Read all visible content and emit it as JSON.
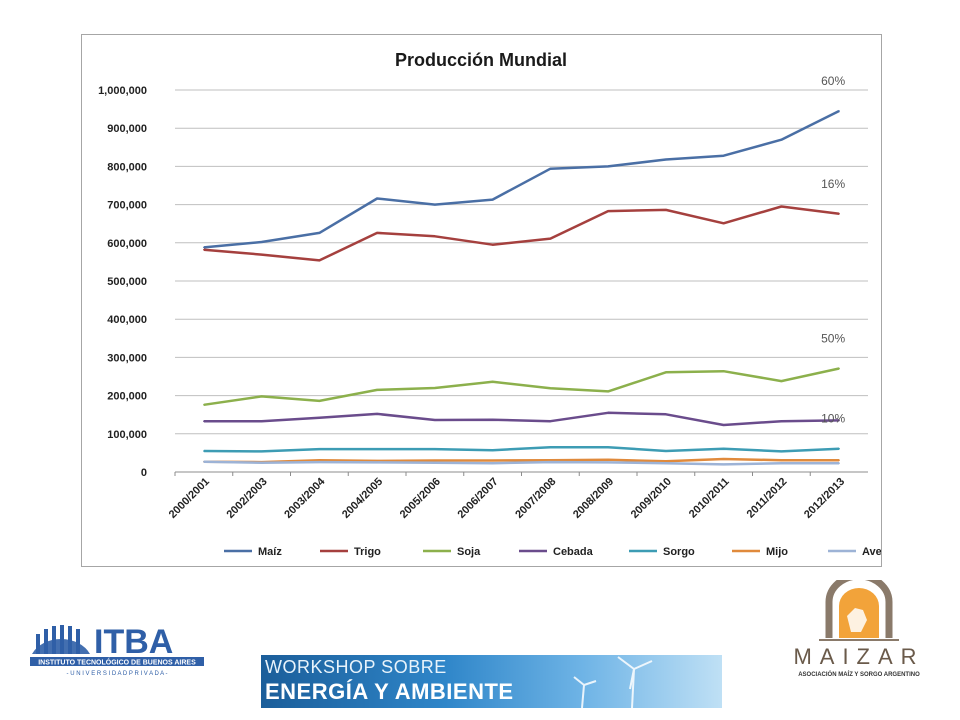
{
  "chart_data": {
    "type": "line",
    "title": "Producción Mundial",
    "categories": [
      "2000/2001",
      "2002/2003",
      "2003/2004",
      "2004/2005",
      "2005/2006",
      "2006/2007",
      "2007/2008",
      "2008/2009",
      "2009/2010",
      "2010/2011",
      "2011/2012",
      "2012/2013"
    ],
    "y_ticks": [
      "0",
      "100,000",
      "200,000",
      "300,000",
      "400,000",
      "500,000",
      "600,000",
      "700,000",
      "800,000",
      "900,000",
      "1,000,000"
    ],
    "ylim": [
      0,
      1000000
    ],
    "grid": true,
    "legend_position": "bottom",
    "series": [
      {
        "name": "Maíz",
        "color": "#4a6fa5",
        "values": [
          588000,
          602000,
          626000,
          716000,
          700000,
          713000,
          794000,
          800000,
          818000,
          828000,
          870000,
          945000
        ]
      },
      {
        "name": "Trigo",
        "color": "#a5403e",
        "values": [
          582000,
          569000,
          554000,
          626000,
          617000,
          595000,
          611000,
          683000,
          686000,
          651000,
          695000,
          676000
        ]
      },
      {
        "name": "Soja",
        "color": "#8cb04c",
        "values": [
          176000,
          198000,
          186000,
          215000,
          220000,
          236000,
          219000,
          211000,
          261000,
          264000,
          238000,
          271000
        ]
      },
      {
        "name": "Cebada",
        "color": "#6a4c8c",
        "values": [
          133000,
          133000,
          142000,
          152000,
          136000,
          137000,
          133000,
          155000,
          151000,
          123000,
          133000,
          135000
        ]
      },
      {
        "name": "Sorgo",
        "color": "#3d9cb4",
        "values": [
          55000,
          54000,
          60000,
          60000,
          60000,
          57000,
          65000,
          65000,
          55000,
          61000,
          54000,
          61000
        ]
      },
      {
        "name": "Mijo",
        "color": "#e08a3c",
        "values": [
          27000,
          26000,
          31000,
          29000,
          30000,
          30000,
          31000,
          32000,
          28000,
          34000,
          31000,
          31000
        ]
      },
      {
        "name": "Avena",
        "color": "#9db3d6",
        "values": [
          27000,
          24000,
          26000,
          25000,
          24000,
          23000,
          26000,
          25000,
          23000,
          20000,
          23000,
          23000
        ]
      }
    ],
    "annotations": [
      {
        "text": "60%",
        "series": "Maíz"
      },
      {
        "text": "16%",
        "series": "Trigo"
      },
      {
        "text": "50%",
        "series": "Soja"
      },
      {
        "text": "10%",
        "series": "Sorgo"
      }
    ]
  },
  "logos": {
    "itba_name": "ITBA",
    "itba_line1": "INSTITUTO TECNOLÓGICO DE BUENOS AIRES",
    "itba_line2": "- U N I V E R S I D A D   P R I V A D A -",
    "maizar_name": "MAIZAR",
    "maizar_sub": "ASOCIACIÓN MAÍZ Y SORGO ARGENTINO"
  },
  "banner": {
    "line1": "WORKSHOP SOBRE",
    "line2": "ENERGÍA Y AMBIENTE"
  }
}
